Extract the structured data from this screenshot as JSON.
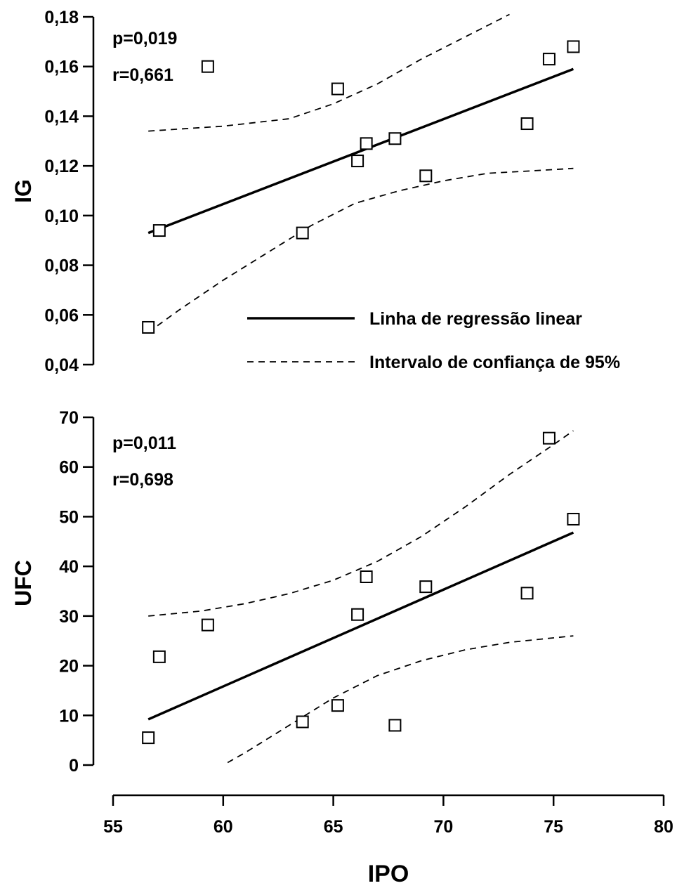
{
  "chart_data": [
    {
      "type": "scatter",
      "ylabel": "IG",
      "xlabel": "",
      "ylim": [
        0.04,
        0.18
      ],
      "yticks": [
        "0,04",
        "0,06",
        "0,08",
        "0,10",
        "0,12",
        "0,14",
        "0,16",
        "0,18"
      ],
      "annotations": {
        "p": "p=0,019",
        "r": "r=0,661"
      },
      "points": [
        {
          "x": 56.6,
          "y": 0.055
        },
        {
          "x": 57.1,
          "y": 0.094
        },
        {
          "x": 59.3,
          "y": 0.16
        },
        {
          "x": 63.6,
          "y": 0.093
        },
        {
          "x": 65.2,
          "y": 0.151
        },
        {
          "x": 66.1,
          "y": 0.122
        },
        {
          "x": 66.5,
          "y": 0.129
        },
        {
          "x": 67.8,
          "y": 0.131
        },
        {
          "x": 69.2,
          "y": 0.116
        },
        {
          "x": 73.8,
          "y": 0.137
        },
        {
          "x": 74.8,
          "y": 0.163
        },
        {
          "x": 75.9,
          "y": 0.168
        }
      ],
      "regression": [
        {
          "x": 56.6,
          "y": 0.093
        },
        {
          "x": 75.9,
          "y": 0.159
        }
      ],
      "ci_upper": [
        {
          "x": 56.6,
          "y": 0.134
        },
        {
          "x": 60,
          "y": 0.136
        },
        {
          "x": 63,
          "y": 0.139
        },
        {
          "x": 65,
          "y": 0.145
        },
        {
          "x": 67,
          "y": 0.153
        },
        {
          "x": 69,
          "y": 0.163
        },
        {
          "x": 71,
          "y": 0.172
        },
        {
          "x": 73,
          "y": 0.181
        }
      ],
      "ci_lower": [
        {
          "x": 56.6,
          "y": 0.053
        },
        {
          "x": 58,
          "y": 0.062
        },
        {
          "x": 60,
          "y": 0.074
        },
        {
          "x": 62,
          "y": 0.085
        },
        {
          "x": 64,
          "y": 0.096
        },
        {
          "x": 66,
          "y": 0.105
        },
        {
          "x": 68,
          "y": 0.11
        },
        {
          "x": 70,
          "y": 0.114
        },
        {
          "x": 72,
          "y": 0.117
        },
        {
          "x": 74,
          "y": 0.118
        },
        {
          "x": 75.9,
          "y": 0.119
        }
      ]
    },
    {
      "type": "scatter",
      "ylabel": "UFC",
      "xlabel": "IPO",
      "ylim": [
        0,
        70
      ],
      "xlim": [
        55,
        80
      ],
      "yticks": [
        "0",
        "10",
        "20",
        "30",
        "40",
        "50",
        "60",
        "70"
      ],
      "xticks": [
        "55",
        "60",
        "65",
        "70",
        "75",
        "80"
      ],
      "annotations": {
        "p": "p=0,011",
        "r": "r=0,698"
      },
      "points": [
        {
          "x": 56.6,
          "y": 5.5
        },
        {
          "x": 57.1,
          "y": 21.8
        },
        {
          "x": 59.3,
          "y": 28.2
        },
        {
          "x": 63.6,
          "y": 8.7
        },
        {
          "x": 65.2,
          "y": 12.0
        },
        {
          "x": 66.1,
          "y": 30.3
        },
        {
          "x": 66.5,
          "y": 37.9
        },
        {
          "x": 67.8,
          "y": 8.0
        },
        {
          "x": 69.2,
          "y": 35.9
        },
        {
          "x": 73.8,
          "y": 34.6
        },
        {
          "x": 74.8,
          "y": 65.8
        },
        {
          "x": 75.9,
          "y": 49.5
        }
      ],
      "regression": [
        {
          "x": 56.6,
          "y": 9.2
        },
        {
          "x": 75.9,
          "y": 46.8
        }
      ],
      "ci_upper": [
        {
          "x": 56.6,
          "y": 30.0
        },
        {
          "x": 59,
          "y": 31.0
        },
        {
          "x": 61,
          "y": 32.5
        },
        {
          "x": 63,
          "y": 34.5
        },
        {
          "x": 65,
          "y": 37.2
        },
        {
          "x": 67,
          "y": 41.0
        },
        {
          "x": 69,
          "y": 46.0
        },
        {
          "x": 71,
          "y": 52.0
        },
        {
          "x": 73,
          "y": 58.5
        },
        {
          "x": 75,
          "y": 64.5
        },
        {
          "x": 75.9,
          "y": 67.3
        }
      ],
      "ci_lower": [
        {
          "x": 60.2,
          "y": 0.5
        },
        {
          "x": 61,
          "y": 2.5
        },
        {
          "x": 63,
          "y": 8.0
        },
        {
          "x": 65,
          "y": 13.5
        },
        {
          "x": 67,
          "y": 18.0
        },
        {
          "x": 69,
          "y": 21.0
        },
        {
          "x": 71,
          "y": 23.2
        },
        {
          "x": 73,
          "y": 24.7
        },
        {
          "x": 75.9,
          "y": 26.0
        }
      ]
    }
  ],
  "legend": {
    "regression_label": "Linha de regressão linear",
    "ci_label": "Intervalo de confiança de 95%"
  }
}
